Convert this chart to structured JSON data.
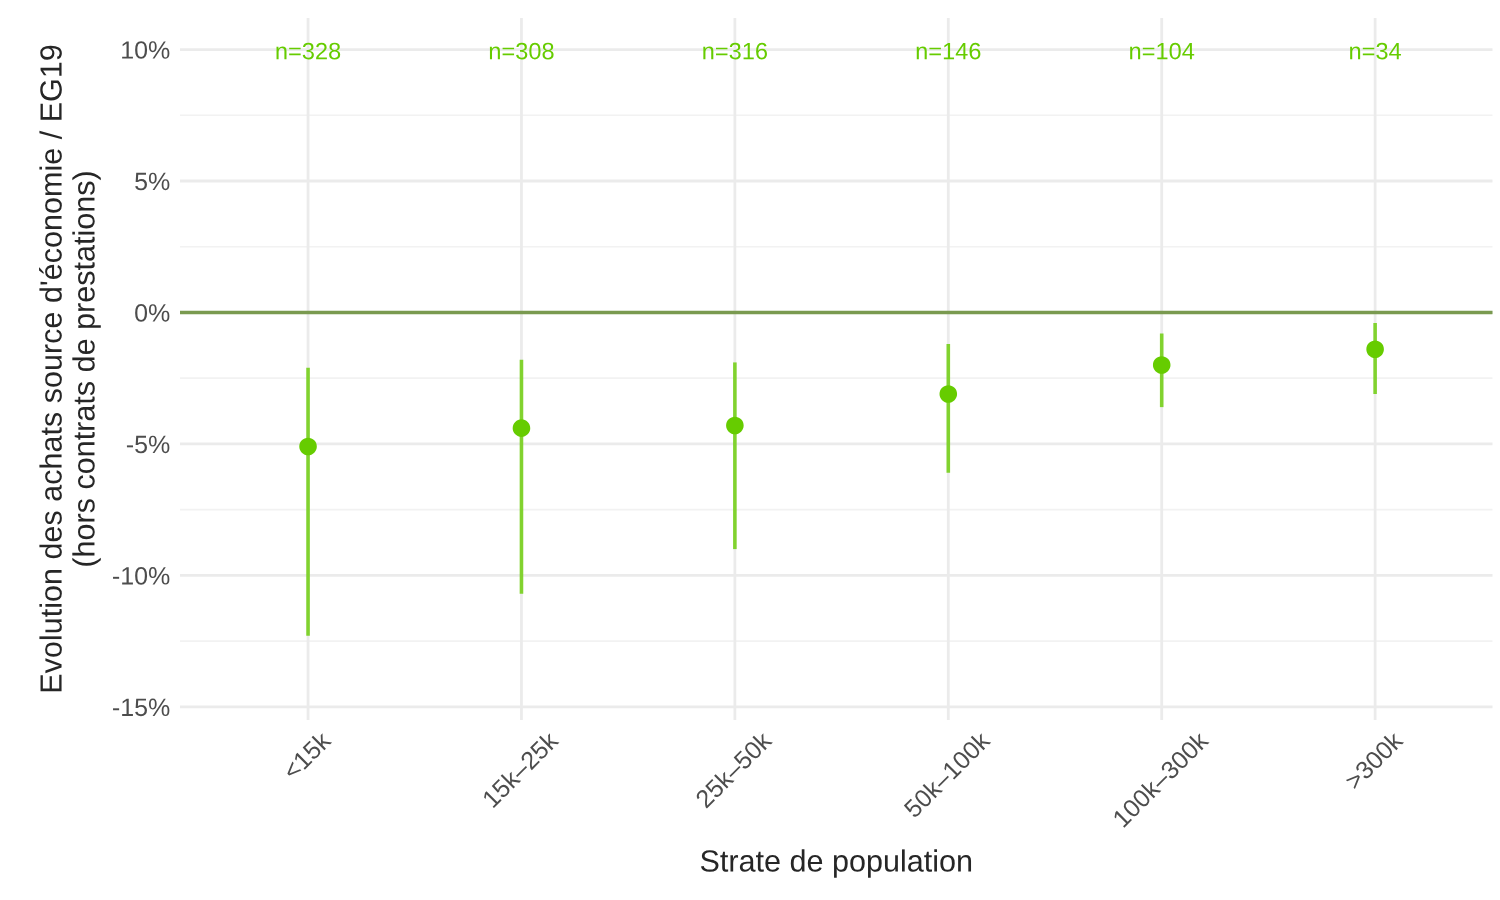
{
  "chart_data": {
    "type": "scatter",
    "xlabel": "Strate de population",
    "ylabel": "Evolution des achats source d'économie / EG19\n(hors contrats de prestations)",
    "categories": [
      "<15k",
      "15k–25k",
      "25k–50k",
      "50k–100k",
      "100k–300k",
      ">300k"
    ],
    "series": [
      {
        "color": "#66cc00",
        "values": [
          -5.1,
          -4.4,
          -4.3,
          -3.1,
          -2.0,
          -1.4
        ],
        "errors": [
          [
            -12.3,
            -2.1
          ],
          [
            -10.7,
            -1.8
          ],
          [
            -9.0,
            -1.9
          ],
          [
            -6.1,
            -1.2
          ],
          [
            -3.6,
            -0.8
          ],
          [
            -3.1,
            -0.4
          ]
        ]
      }
    ],
    "marker": "circle",
    "grid": true,
    "legend": false,
    "ylim": [
      -15.5,
      11.2
    ],
    "yticks": [
      {
        "value": -15,
        "label": "-15%"
      },
      {
        "value": -10,
        "label": "-10%"
      },
      {
        "value": -5,
        "label": "-5%"
      },
      {
        "value": 0,
        "label": "0%"
      },
      {
        "value": 5,
        "label": "5%"
      },
      {
        "value": 10,
        "label": "10%"
      }
    ],
    "ref_lines": [
      {
        "axis": "y",
        "value": 0,
        "color": "#7a9a50"
      }
    ],
    "annotations": [
      "n=328",
      "n=308",
      "n=316",
      "n=146",
      "n=104",
      "n=34"
    ]
  }
}
